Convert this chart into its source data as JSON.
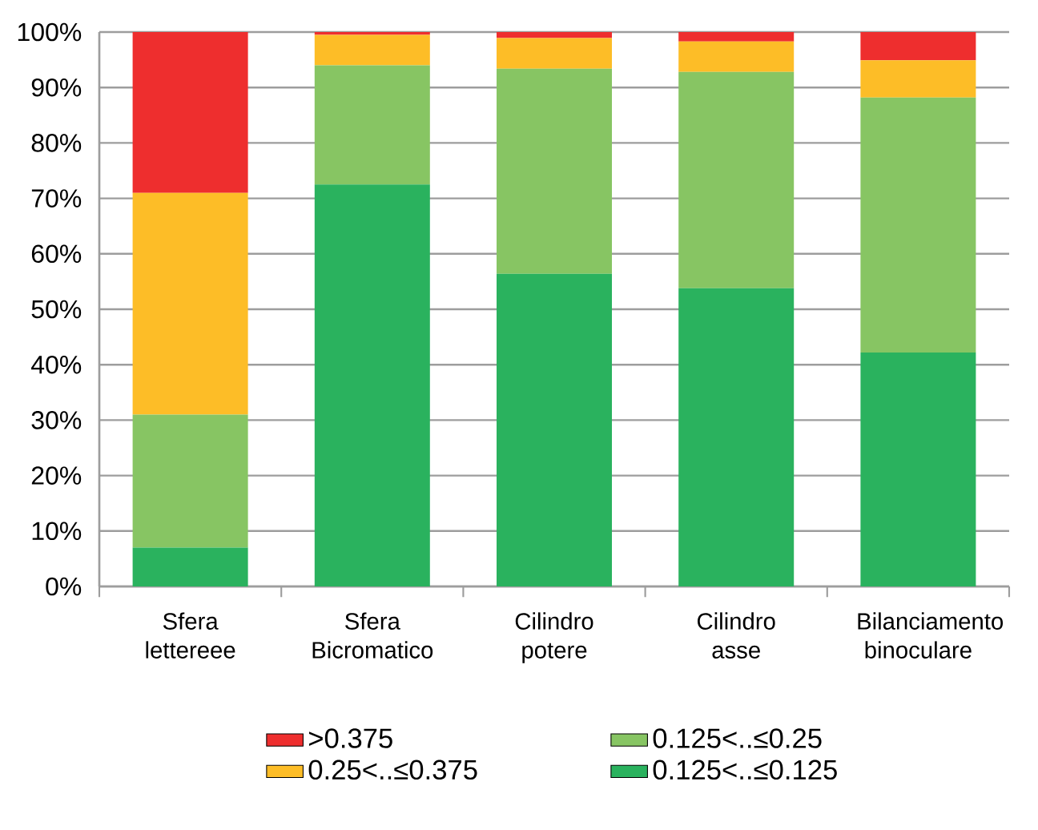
{
  "chart_data": {
    "type": "bar",
    "stacked": true,
    "categories": [
      "Sfera lettereee",
      "Sfera Bicromatico",
      "Cilindro potere",
      "Cilindro asse",
      "Bilanciamento binoculare"
    ],
    "series": [
      {
        "name": "0.125<..≤0.125",
        "color": "#2ab25e",
        "values": [
          7,
          72.5,
          56.4,
          53.8,
          42.2
        ]
      },
      {
        "name": "0.125<..≤0.25",
        "color": "#87c563",
        "values": [
          24,
          21.5,
          37,
          39,
          46
        ]
      },
      {
        "name": "0.25<..≤0.375",
        "color": "#fdbd27",
        "values": [
          40,
          5.5,
          5.5,
          5.5,
          6.7
        ]
      },
      {
        "name": ">0.375",
        "color": "#ee2e2e",
        "values": [
          29,
          0.5,
          1.1,
          1.7,
          5.1
        ]
      }
    ],
    "ylim": [
      0,
      100
    ],
    "yticks": [
      {
        "value": 0,
        "label": "0%"
      },
      {
        "value": 10,
        "label": "10%"
      },
      {
        "value": 20,
        "label": "20%"
      },
      {
        "value": 30,
        "label": "30%"
      },
      {
        "value": 40,
        "label": "40%"
      },
      {
        "value": 50,
        "label": "50%"
      },
      {
        "value": 60,
        "label": "60%"
      },
      {
        "value": 70,
        "label": "70%"
      },
      {
        "value": 80,
        "label": "80%"
      },
      {
        "value": 90,
        "label": "90%"
      },
      {
        "value": 100,
        "label": "100%"
      }
    ],
    "grid": "y",
    "legend": "bottom"
  }
}
